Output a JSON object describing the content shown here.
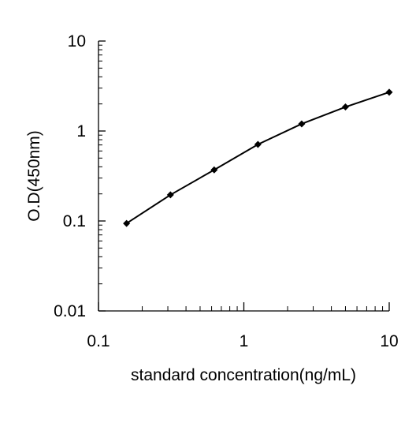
{
  "chart_data": {
    "type": "line",
    "title": "",
    "xlabel": "standard concentration(ng/mL)",
    "ylabel": "O.D(450nm)",
    "x_scale": "log",
    "y_scale": "log",
    "xlim": [
      0.1,
      10
    ],
    "ylim": [
      0.01,
      10
    ],
    "x_ticks": [
      "0.1",
      "1",
      "10"
    ],
    "y_ticks": [
      "0.01",
      "0.1",
      "1",
      "10"
    ],
    "grid": false,
    "legend": "none",
    "series": [
      {
        "x": [
          0.156,
          0.3125,
          0.625,
          1.25,
          2.5,
          5,
          10
        ],
        "y": [
          0.094,
          0.195,
          0.37,
          0.71,
          1.2,
          1.85,
          2.7
        ]
      }
    ]
  }
}
